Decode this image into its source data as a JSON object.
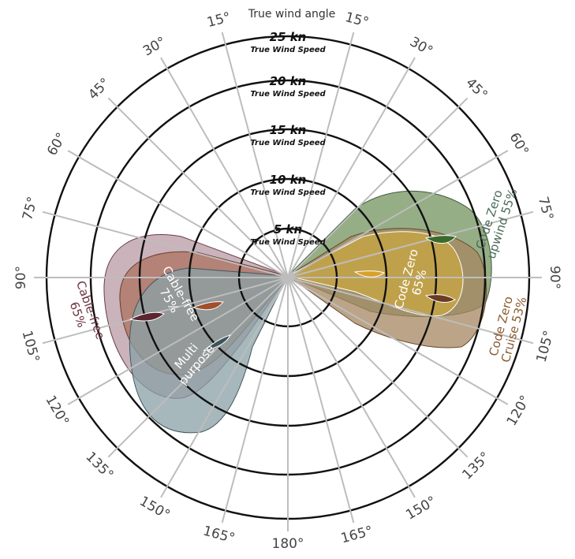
{
  "title": "True wind angle",
  "speed_rings": [
    {
      "knots": "5 kn",
      "subtitle": "True Wind Speed"
    },
    {
      "knots": "10 kn",
      "subtitle": "True Wind Speed"
    },
    {
      "knots": "15 kn",
      "subtitle": "True Wind Speed"
    },
    {
      "knots": "20 kn",
      "subtitle": "True Wind Speed"
    },
    {
      "knots": "25 kn",
      "subtitle": "True Wind Speed"
    }
  ],
  "angles": [
    "15°",
    "30°",
    "45°",
    "60°",
    "75°",
    "90°",
    "105°",
    "120°",
    "135°",
    "150°",
    "165°",
    "180°"
  ],
  "sail_zones": [
    {
      "id": "cable-free-65",
      "lines": [
        "Cable-free",
        "65%"
      ],
      "color": "#8a5a66",
      "fill": "#b08a94"
    },
    {
      "id": "cable-free-75",
      "lines": [
        "Cable-free",
        "75%"
      ],
      "color": "#ffffff",
      "fill": "#a8604a"
    },
    {
      "id": "multi-purpose",
      "lines": [
        "Multi",
        "purpose"
      ],
      "color": "#ffffff",
      "fill": "#7f959c"
    },
    {
      "id": "code-zero-upwind-55",
      "lines": [
        "Code Zero",
        "upwind 55%"
      ],
      "color": "#4a6a58",
      "fill": "#6f9660"
    },
    {
      "id": "code-zero-65",
      "lines": [
        "Code Zero",
        "65%"
      ],
      "color": "#ffffff",
      "fill": "#b89a3a"
    },
    {
      "id": "code-zero-cruise-53",
      "lines": [
        "Code Zero",
        "Cruise 53%"
      ],
      "color": "#8a5a30",
      "fill": "#9c7a58"
    }
  ]
}
